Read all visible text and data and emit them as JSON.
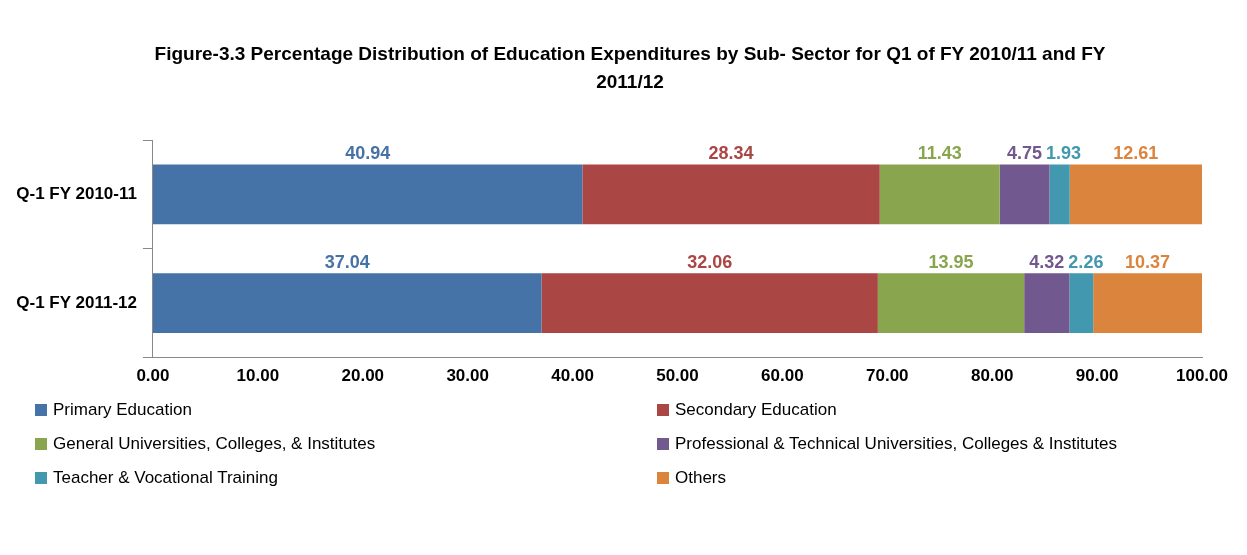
{
  "chart_data": {
    "type": "bar",
    "orientation": "horizontal",
    "stacked": true,
    "title": "Figure-3.3 Percentage Distribution of Education Expenditures by Sub- Sector for Q1 of FY 2010/11 and FY 2011/12",
    "categories": [
      "Q-1 FY 2010-11",
      "Q-1 FY 2011-12"
    ],
    "series": [
      {
        "name": "Primary Education",
        "color": "#4572a7",
        "values": [
          40.94,
          37.04
        ]
      },
      {
        "name": "Secondary Education",
        "color": "#aa4643",
        "values": [
          28.34,
          32.06
        ]
      },
      {
        "name": "General Universities, Colleges, & Institutes",
        "color": "#89a54e",
        "values": [
          11.43,
          13.95
        ]
      },
      {
        "name": "Professional & Technical Universities, Colleges & Institutes",
        "color": "#71588f",
        "values": [
          4.75,
          4.32
        ]
      },
      {
        "name": "Teacher & Vocational Training",
        "color": "#4198af",
        "values": [
          1.93,
          2.26
        ]
      },
      {
        "name": "Others",
        "color": "#db843d",
        "values": [
          12.61,
          10.37
        ]
      }
    ],
    "xlim": [
      0,
      100
    ],
    "xticks": [
      {
        "value": 0,
        "label": "0.00"
      },
      {
        "value": 10,
        "label": "10.00"
      },
      {
        "value": 20,
        "label": "20.00"
      },
      {
        "value": 30,
        "label": "30.00"
      },
      {
        "value": 40,
        "label": "40.00"
      },
      {
        "value": 50,
        "label": "50.00"
      },
      {
        "value": 60,
        "label": "60.00"
      },
      {
        "value": 70,
        "label": "70.00"
      },
      {
        "value": 80,
        "label": "80.00"
      },
      {
        "value": 90,
        "label": "90.00"
      },
      {
        "value": 100,
        "label": "100.00"
      }
    ],
    "data_labels": true,
    "grid": false,
    "legend": "bottom"
  }
}
